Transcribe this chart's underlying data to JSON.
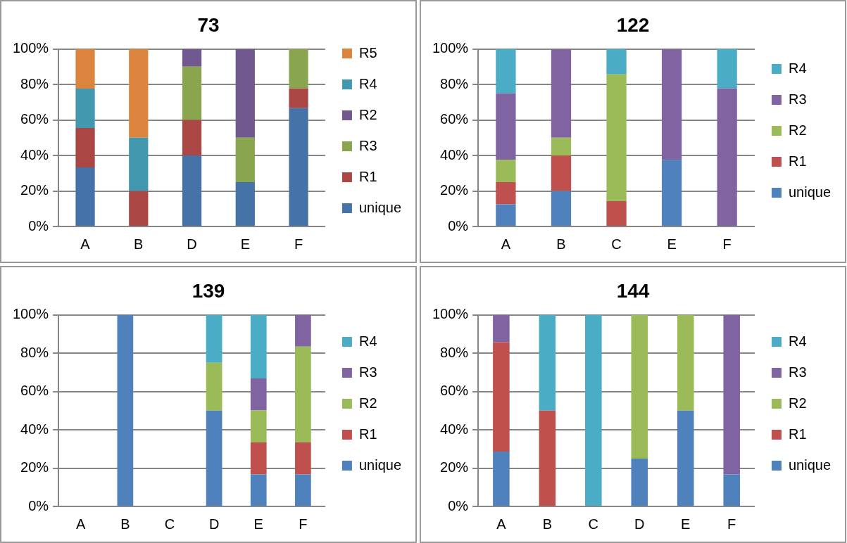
{
  "chart_data": [
    {
      "type": "bar",
      "title": "73",
      "stacked": true,
      "categories": [
        "A",
        "B",
        "D",
        "E",
        "F"
      ],
      "ylim": [
        0,
        100
      ],
      "yticks": [
        {
          "value": 0,
          "label": "0%"
        },
        {
          "value": 20,
          "label": "20%"
        },
        {
          "value": 40,
          "label": "40%"
        },
        {
          "value": 60,
          "label": "60%"
        },
        {
          "value": 80,
          "label": "80%"
        },
        {
          "value": 100,
          "label": "100%"
        }
      ],
      "grid": "y",
      "legend": "right",
      "series": [
        {
          "name": "unique",
          "color": "#4572a7",
          "values": [
            33.3,
            null,
            40,
            25,
            66.7
          ]
        },
        {
          "name": "R1",
          "color": "#aa4643",
          "values": [
            22.2,
            20,
            20,
            null,
            11.1
          ]
        },
        {
          "name": "R3",
          "color": "#89a54e",
          "values": [
            null,
            null,
            30,
            25,
            22.2
          ]
        },
        {
          "name": "R2",
          "color": "#71588f",
          "values": [
            null,
            null,
            10,
            50,
            null
          ]
        },
        {
          "name": "R4",
          "color": "#4198af",
          "values": [
            22.2,
            30,
            null,
            null,
            null
          ]
        },
        {
          "name": "R5",
          "color": "#db843d",
          "values": [
            22.2,
            50,
            null,
            null,
            null
          ]
        }
      ]
    },
    {
      "type": "bar",
      "title": "122",
      "stacked": true,
      "categories": [
        "A",
        "B",
        "C",
        "E",
        "F"
      ],
      "ylim": [
        0,
        100
      ],
      "yticks": [
        {
          "value": 0,
          "label": "0%"
        },
        {
          "value": 20,
          "label": "20%"
        },
        {
          "value": 40,
          "label": "40%"
        },
        {
          "value": 60,
          "label": "60%"
        },
        {
          "value": 80,
          "label": "80%"
        },
        {
          "value": 100,
          "label": "100%"
        }
      ],
      "grid": "y",
      "legend": "right",
      "series": [
        {
          "name": "unique",
          "color": "#4f81bd",
          "values": [
            12.5,
            20,
            null,
            37.5,
            null
          ]
        },
        {
          "name": "R1",
          "color": "#c0504d",
          "values": [
            12.5,
            20,
            14.3,
            null,
            null
          ]
        },
        {
          "name": "R2",
          "color": "#9bbb59",
          "values": [
            12.5,
            10,
            71.4,
            null,
            null
          ]
        },
        {
          "name": "R3",
          "color": "#8064a2",
          "values": [
            37.5,
            50,
            null,
            62.5,
            77.8
          ]
        },
        {
          "name": "R4",
          "color": "#4bacc6",
          "values": [
            25,
            null,
            14.3,
            null,
            22.2
          ]
        }
      ]
    },
    {
      "type": "bar",
      "title": "139",
      "stacked": true,
      "categories": [
        "A",
        "B",
        "C",
        "D",
        "E",
        "F"
      ],
      "ylim": [
        0,
        100
      ],
      "yticks": [
        {
          "value": 0,
          "label": "0%"
        },
        {
          "value": 20,
          "label": "20%"
        },
        {
          "value": 40,
          "label": "40%"
        },
        {
          "value": 60,
          "label": "60%"
        },
        {
          "value": 80,
          "label": "80%"
        },
        {
          "value": 100,
          "label": "100%"
        }
      ],
      "grid": "y",
      "legend": "right",
      "series": [
        {
          "name": "unique",
          "color": "#4f81bd",
          "values": [
            null,
            100,
            null,
            50,
            16.7,
            16.7
          ]
        },
        {
          "name": "R1",
          "color": "#c0504d",
          "values": [
            null,
            null,
            null,
            null,
            16.7,
            16.7
          ]
        },
        {
          "name": "R2",
          "color": "#9bbb59",
          "values": [
            null,
            null,
            null,
            25,
            16.7,
            50
          ]
        },
        {
          "name": "R3",
          "color": "#8064a2",
          "values": [
            null,
            null,
            null,
            null,
            16.7,
            16.7
          ]
        },
        {
          "name": "R4",
          "color": "#4bacc6",
          "values": [
            null,
            null,
            null,
            25,
            33.3,
            null
          ]
        }
      ]
    },
    {
      "type": "bar",
      "title": "144",
      "stacked": true,
      "categories": [
        "A",
        "B",
        "C",
        "D",
        "E",
        "F"
      ],
      "ylim": [
        0,
        100
      ],
      "yticks": [
        {
          "value": 0,
          "label": "0%"
        },
        {
          "value": 20,
          "label": "20%"
        },
        {
          "value": 40,
          "label": "40%"
        },
        {
          "value": 60,
          "label": "60%"
        },
        {
          "value": 80,
          "label": "80%"
        },
        {
          "value": 100,
          "label": "100%"
        }
      ],
      "grid": "y",
      "legend": "right",
      "series": [
        {
          "name": "unique",
          "color": "#4f81bd",
          "values": [
            28.6,
            null,
            null,
            25,
            50,
            16.7
          ]
        },
        {
          "name": "R1",
          "color": "#c0504d",
          "values": [
            57.1,
            50,
            null,
            null,
            null,
            null
          ]
        },
        {
          "name": "R2",
          "color": "#9bbb59",
          "values": [
            null,
            null,
            null,
            75,
            50,
            null
          ]
        },
        {
          "name": "R3",
          "color": "#8064a2",
          "values": [
            14.3,
            null,
            null,
            null,
            null,
            83.3
          ]
        },
        {
          "name": "R4",
          "color": "#4bacc6",
          "values": [
            null,
            50,
            100,
            null,
            null,
            null
          ]
        }
      ]
    }
  ]
}
